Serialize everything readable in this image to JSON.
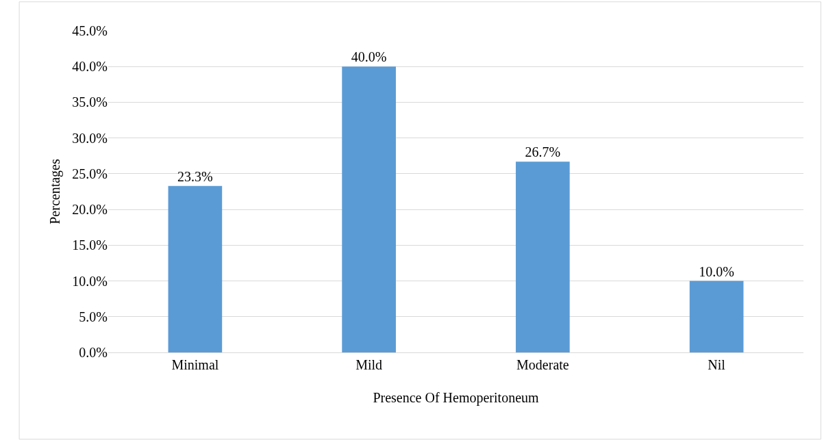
{
  "chart_data": {
    "type": "bar",
    "xlabel": "Presence Of Hemoperitoneum",
    "ylabel": "Percentages",
    "categories": [
      "Minimal",
      "Mild",
      "Moderate",
      "Nil"
    ],
    "values": [
      23.3,
      40.0,
      26.7,
      10.0
    ],
    "value_labels": [
      "23.3%",
      "40.0%",
      "26.7%",
      "10.0%"
    ],
    "color": "#5b9bd5",
    "ylim": [
      0,
      45
    ],
    "yticks": [
      {
        "value": 0,
        "label": "0.0%"
      },
      {
        "value": 5,
        "label": "5.0%"
      },
      {
        "value": 10,
        "label": "10.0%"
      },
      {
        "value": 15,
        "label": "15.0%"
      },
      {
        "value": 20,
        "label": "20.0%"
      },
      {
        "value": 25,
        "label": "25.0%"
      },
      {
        "value": 30,
        "label": "30.0%"
      },
      {
        "value": 35,
        "label": "35.0%"
      },
      {
        "value": 40,
        "label": "40.0%"
      },
      {
        "value": 45,
        "label": "45.0%"
      }
    ],
    "grid": "y"
  }
}
